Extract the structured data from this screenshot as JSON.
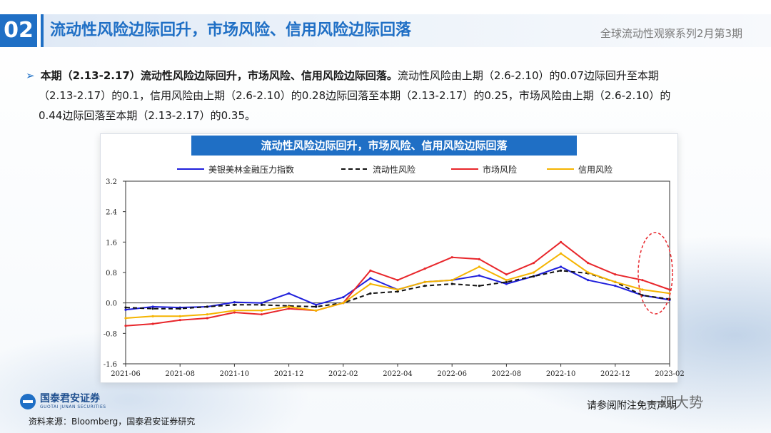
{
  "header": {
    "section_number": "02",
    "title": "流动性风险边际回升，市场风险、信用风险边际回落",
    "series": "全球流动性观察系列2月第3期"
  },
  "summary": {
    "bullet_bold": "本期（2.13-2.17）流动性风险边际回升，市场风险、信用风险边际回落。",
    "line1_rest": "流动性风险由上期（2.6-2.10）的0.07边际回升至本期",
    "line2": "（2.13-2.17）的0.1，信用风险由上期（2.6-2.10）的0.28边际回落至本期（2.13-2.17）的0.25，市场风险由上期（2.6-2.10）的",
    "line3": "0.44边际回落至本期（2.13-2.17）的0.35。"
  },
  "chart_title": "流动性风险边际回升，市场风险、信用风险边际回落",
  "footer": {
    "logo_cn": "国泰君安证券",
    "logo_en": "GUOTAI JUNAN SECURITIES",
    "source": "资料来源：Bloomberg，国泰君安证券研究",
    "disclaimer": "请参阅附注免责声明",
    "watermark": "一观大势"
  },
  "chart_data": {
    "type": "line",
    "x": [
      "2021-06",
      "2021-07",
      "2021-08",
      "2021-09",
      "2021-10",
      "2021-11",
      "2021-12",
      "2022-01",
      "2022-02",
      "2022-03",
      "2022-04",
      "2022-05",
      "2022-06",
      "2022-07",
      "2022-08",
      "2022-09",
      "2022-10",
      "2022-11",
      "2022-12",
      "2023-01",
      "2023-02"
    ],
    "xticks": [
      "2021-06",
      "2021-08",
      "2021-10",
      "2021-12",
      "2022-02",
      "2022-04",
      "2022-06",
      "2022-08",
      "2022-10",
      "2022-12",
      "2023-02"
    ],
    "ylim": [
      -1.6,
      3.2
    ],
    "yticks": [
      "3.2",
      "2.4",
      "1.6",
      "0.8",
      "0.0",
      "-0.8",
      "-1.6"
    ],
    "series": [
      {
        "name": "美银美林金融压力指数",
        "color": "#1f1fdc",
        "dash": "",
        "values": [
          -0.18,
          -0.1,
          -0.12,
          -0.1,
          0.02,
          0.0,
          0.25,
          -0.05,
          0.15,
          0.65,
          0.35,
          0.55,
          0.6,
          0.72,
          0.5,
          0.7,
          0.95,
          0.6,
          0.45,
          0.2,
          0.08
        ]
      },
      {
        "name": "流动性风险",
        "color": "#111111",
        "dash": "6,4",
        "values": [
          -0.12,
          -0.15,
          -0.15,
          -0.1,
          -0.05,
          -0.05,
          -0.08,
          -0.1,
          0.0,
          0.25,
          0.3,
          0.45,
          0.5,
          0.45,
          0.55,
          0.7,
          0.85,
          0.78,
          0.55,
          0.2,
          0.1
        ]
      },
      {
        "name": "市场风险",
        "color": "#e8262b",
        "dash": "",
        "values": [
          -0.6,
          -0.55,
          -0.45,
          -0.4,
          -0.25,
          -0.3,
          -0.15,
          -0.2,
          0.0,
          0.85,
          0.6,
          0.9,
          1.2,
          1.15,
          0.75,
          1.05,
          1.6,
          1.05,
          0.75,
          0.6,
          0.35
        ]
      },
      {
        "name": "信用风险",
        "color": "#f5b400",
        "dash": "",
        "values": [
          -0.4,
          -0.35,
          -0.35,
          -0.3,
          -0.2,
          -0.2,
          -0.1,
          -0.2,
          0.0,
          0.5,
          0.35,
          0.55,
          0.6,
          0.95,
          0.6,
          0.8,
          1.3,
          0.8,
          0.55,
          0.35,
          0.25
        ]
      }
    ],
    "title": "",
    "xlabel": "",
    "ylabel": "",
    "grid": false,
    "legend": "top"
  }
}
